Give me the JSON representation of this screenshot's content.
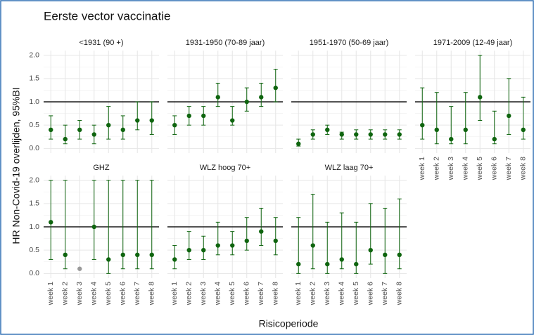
{
  "chart_data": {
    "type": "errorbar",
    "title": "Eerste vector vaccinatie",
    "ylabel": "HR Non-Covid-19 overlijden, 95%BI",
    "xlabel": "Risicoperiode",
    "categories": [
      "week 1",
      "week 2",
      "week 3",
      "week 4",
      "week 5",
      "week 6",
      "week 7",
      "week 8"
    ],
    "ylim": [
      -0.1,
      2.1
    ],
    "yticks": [
      {
        "value": 0,
        "label": "0.0"
      },
      {
        "value": 0.5,
        "label": "0.5"
      },
      {
        "value": 1,
        "label": "1.0"
      },
      {
        "value": 1.5,
        "label": "1.5"
      },
      {
        "value": 2,
        "label": "2.0"
      }
    ],
    "grid": true,
    "hline": 1,
    "color": "#0f650f",
    "na_color": "#9a9a9a",
    "panels": [
      {
        "title": "<1931 (90 +)",
        "values": [
          0.4,
          0.2,
          0.4,
          0.3,
          0.5,
          0.4,
          0.6,
          0.6
        ],
        "lower": [
          0.2,
          0.1,
          0.2,
          0.1,
          0.2,
          0.2,
          0.4,
          0.3
        ],
        "upper": [
          0.7,
          0.5,
          0.6,
          0.5,
          0.9,
          0.7,
          1.0,
          1.0
        ]
      },
      {
        "title": "1931-1950 (70-89 jaar)",
        "values": [
          0.5,
          0.7,
          0.7,
          1.1,
          0.6,
          1.0,
          1.1,
          1.3
        ],
        "lower": [
          0.3,
          0.5,
          0.5,
          0.9,
          0.5,
          0.8,
          0.9,
          1.0
        ],
        "upper": [
          0.7,
          0.9,
          0.9,
          1.4,
          0.9,
          1.3,
          1.4,
          1.7
        ]
      },
      {
        "title": "1951-1970 (50-69 jaar)",
        "values": [
          0.1,
          0.3,
          0.4,
          0.3,
          0.3,
          0.3,
          0.3,
          0.3
        ],
        "lower": [
          0.05,
          0.2,
          0.3,
          0.2,
          0.2,
          0.2,
          0.2,
          0.2
        ],
        "upper": [
          0.2,
          0.4,
          0.5,
          0.35,
          0.4,
          0.4,
          0.4,
          0.4
        ]
      },
      {
        "title": "1971-2009 (12-49 jaar)",
        "values": [
          0.5,
          0.4,
          0.2,
          0.4,
          1.1,
          0.2,
          0.7,
          0.4
        ],
        "lower": [
          0.2,
          0.1,
          0.1,
          0.1,
          0.6,
          0.1,
          0.3,
          0.2
        ],
        "upper": [
          1.3,
          1.2,
          0.9,
          1.2,
          2.0,
          0.8,
          1.5,
          1.1
        ]
      },
      {
        "title": "GHZ",
        "values": [
          1.1,
          0.4,
          0.1,
          1.0,
          0.3,
          0.4,
          0.4,
          0.4
        ],
        "lower": [
          0.3,
          0.1,
          null,
          0.3,
          0.0,
          0.1,
          0.1,
          0.1
        ],
        "upper": [
          2.0,
          2.0,
          null,
          2.0,
          2.0,
          2.0,
          2.0,
          2.0
        ]
      },
      {
        "title": "WLZ hoog 70+",
        "values": [
          0.3,
          0.5,
          0.5,
          0.6,
          0.6,
          0.7,
          0.9,
          0.7
        ],
        "lower": [
          0.1,
          0.3,
          0.3,
          0.4,
          0.4,
          0.5,
          0.6,
          0.4
        ],
        "upper": [
          0.6,
          0.9,
          0.8,
          1.1,
          0.9,
          1.2,
          1.4,
          1.2
        ]
      },
      {
        "title": "WLZ laag 70+",
        "values": [
          0.2,
          0.6,
          0.2,
          0.3,
          0.2,
          0.5,
          0.4,
          0.4
        ],
        "lower": [
          0.0,
          0.1,
          0.0,
          0.1,
          0.0,
          0.2,
          0.0,
          0.1
        ],
        "upper": [
          1.2,
          1.7,
          1.1,
          1.3,
          1.1,
          1.5,
          1.4,
          1.6
        ]
      }
    ]
  }
}
